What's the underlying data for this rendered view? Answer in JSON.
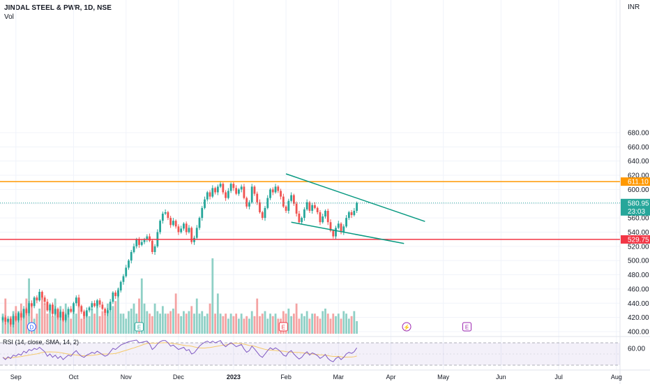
{
  "header": {
    "title": "JINDAL STEEL & PWR, 1D, NSE",
    "vol_label": "Vol",
    "currency": "INR"
  },
  "colors": {
    "up": "#26a69a",
    "down": "#ef5350",
    "vol_up": "#8fd0c6",
    "vol_down": "#f4a3a3",
    "resistance": "#ff9800",
    "support": "#f23645",
    "trendline": "#089981",
    "rsi_line": "#7e57c2",
    "rsi_sma": "#f5c96b",
    "grid": "#f0f3fa",
    "axis_text": "#131722"
  },
  "chart_data": {
    "type": "candlestick",
    "ylim": [
      395,
      700
    ],
    "yticks": [
      680,
      660,
      640,
      620,
      600,
      580,
      560,
      540,
      520,
      500,
      480,
      460,
      440,
      420,
      400
    ],
    "xticks": [
      "Sep",
      "Oct",
      "Nov",
      "Dec",
      "2023",
      "Feb",
      "Mar",
      "Apr",
      "May",
      "Jun",
      "Jul",
      "Aug"
    ],
    "anchors": [
      {
        "label": "Sep",
        "i": 5
      },
      {
        "label": "Oct",
        "i": 27
      },
      {
        "label": "Nov",
        "i": 47
      },
      {
        "label": "Dec",
        "i": 67
      },
      {
        "label": "2023",
        "i": 88
      },
      {
        "label": "Feb",
        "i": 108
      },
      {
        "label": "Mar",
        "i": 128
      },
      {
        "label": "Apr",
        "i": 148
      },
      {
        "label": "May",
        "i": 168
      },
      {
        "label": "Jun",
        "i": 190
      },
      {
        "label": "Jul",
        "i": 212
      },
      {
        "label": "Aug",
        "i": 234
      }
    ],
    "closes": [
      420,
      414,
      418,
      410,
      422,
      416,
      426,
      420,
      432,
      426,
      440,
      436,
      448,
      444,
      456,
      448,
      442,
      430,
      438,
      425,
      432,
      420,
      428,
      416,
      424,
      432,
      428,
      440,
      448,
      436,
      428,
      422,
      430,
      434,
      440,
      436,
      444,
      438,
      432,
      426,
      430,
      442,
      455,
      450,
      458,
      470,
      478,
      490,
      500,
      512,
      520,
      530,
      522,
      526,
      530,
      534,
      528,
      512,
      520,
      540,
      556,
      566,
      568,
      560,
      550,
      556,
      548,
      540,
      545,
      552,
      540,
      546,
      526,
      532,
      546,
      560,
      574,
      586,
      596,
      590,
      602,
      596,
      604,
      608,
      596,
      588,
      598,
      608,
      602,
      594,
      600,
      604,
      588,
      576,
      582,
      604,
      594,
      582,
      568,
      560,
      574,
      588,
      600,
      596,
      604,
      598,
      590,
      576,
      570,
      584,
      592,
      580,
      566,
      554,
      560,
      572,
      582,
      570,
      578,
      574,
      568,
      554,
      562,
      570,
      554,
      542,
      534,
      546,
      552,
      540,
      548,
      560,
      568,
      564,
      570,
      581
    ],
    "volumes": [
      40,
      70,
      30,
      35,
      45,
      55,
      45,
      60,
      40,
      70,
      110,
      60,
      30,
      40,
      50,
      75,
      60,
      40,
      50,
      35,
      70,
      40,
      55,
      40,
      60,
      40,
      30,
      45,
      40,
      70,
      30,
      45,
      40,
      35,
      50,
      40,
      60,
      35,
      45,
      40,
      60,
      45,
      55,
      65,
      90,
      40,
      40,
      30,
      45,
      50,
      60,
      40,
      70,
      110,
      60,
      45,
      40,
      35,
      60,
      45,
      40,
      55,
      40,
      40,
      45,
      50,
      80,
      40,
      35,
      45,
      40,
      45,
      55,
      40,
      70,
      40,
      45,
      35,
      40,
      60,
      150,
      40,
      80,
      40,
      35,
      40,
      30,
      40,
      35,
      40,
      30,
      40,
      30,
      35,
      30,
      45,
      35,
      70,
      35,
      40,
      45,
      30,
      40,
      35,
      40,
      30,
      30,
      45,
      40,
      50,
      35,
      40,
      60,
      30,
      40,
      35,
      45,
      30,
      40,
      40,
      35,
      30,
      45,
      50,
      40,
      30,
      40,
      35,
      40,
      30,
      45,
      40,
      30,
      35,
      45,
      25
    ],
    "rsi": [
      44,
      40,
      45,
      42,
      48,
      46,
      50,
      48,
      55,
      52,
      58,
      56,
      60,
      58,
      62,
      58,
      54,
      46,
      50,
      44,
      48,
      42,
      46,
      40,
      44,
      48,
      46,
      52,
      56,
      50,
      46,
      44,
      48,
      50,
      53,
      51,
      55,
      52,
      49,
      46,
      48,
      54,
      60,
      58,
      62,
      66,
      68,
      70,
      72,
      73,
      74,
      75,
      70,
      71,
      72,
      73,
      68,
      58,
      62,
      68,
      72,
      74,
      74,
      70,
      64,
      66,
      62,
      58,
      60,
      62,
      56,
      58,
      50,
      52,
      58,
      64,
      68,
      71,
      73,
      70,
      73,
      70,
      72,
      74,
      67,
      63,
      67,
      70,
      67,
      63,
      65,
      67,
      59,
      53,
      56,
      64,
      59,
      53,
      47,
      44,
      50,
      56,
      61,
      58,
      61,
      58,
      54,
      48,
      46,
      53,
      56,
      50,
      45,
      41,
      44,
      50,
      54,
      48,
      52,
      50,
      47,
      42,
      45,
      49,
      42,
      38,
      36,
      42,
      45,
      40,
      44,
      50,
      53,
      51,
      54,
      61
    ],
    "horizontal_lines": [
      {
        "name": "resistance",
        "value": 611.1,
        "label": "611.10"
      },
      {
        "name": "support",
        "value": 529.75,
        "label": "529.75"
      }
    ],
    "last_price": {
      "value": 580.95,
      "label": "580.95",
      "countdown": "23:03"
    },
    "trendlines": [
      {
        "name": "upper-trendline",
        "from": {
          "i": 108,
          "price": 622
        },
        "to": {
          "i": 161,
          "price": 555
        }
      },
      {
        "name": "lower-trendline",
        "from": {
          "i": 110,
          "price": 554
        },
        "to": {
          "i": 153,
          "price": 524
        }
      }
    ],
    "events": [
      {
        "kind": "dividend",
        "label": "D",
        "i": 11,
        "color": "#2962ff"
      },
      {
        "kind": "earnings",
        "label": "E",
        "i": 52,
        "color": "#26a69a"
      },
      {
        "kind": "earnings",
        "label": "E",
        "i": 107,
        "color": "#f23645"
      },
      {
        "kind": "split",
        "label": "⚡",
        "i": 154,
        "color": "#9c27b0"
      },
      {
        "kind": "earnings",
        "label": "E",
        "i": 177,
        "color": "#9c27b0"
      }
    ],
    "rsi_panel": {
      "legend": "RSI (14, close, SMA, 14, 2)",
      "tick": "60.00",
      "upper": 70,
      "lower": 30,
      "ylim": [
        25,
        80
      ]
    }
  }
}
